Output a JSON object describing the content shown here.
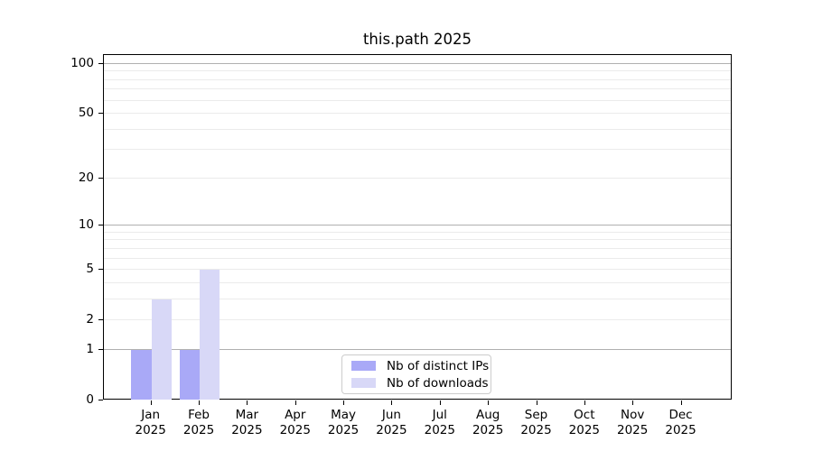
{
  "chart_data": {
    "type": "bar",
    "title": "this.path 2025",
    "categories": [
      "Jan",
      "Feb",
      "Mar",
      "Apr",
      "May",
      "Jun",
      "Jul",
      "Aug",
      "Sep",
      "Oct",
      "Nov",
      "Dec"
    ],
    "category_year": "2025",
    "series": [
      {
        "name": "Nb of distinct IPs",
        "color": "#a9a9f7",
        "values": [
          1,
          1,
          0,
          0,
          0,
          0,
          0,
          0,
          0,
          0,
          0,
          0
        ]
      },
      {
        "name": "Nb of downloads",
        "color": "#d8d8f7",
        "values": [
          3,
          5,
          0,
          0,
          0,
          0,
          0,
          0,
          0,
          0,
          0,
          0
        ]
      }
    ],
    "y_axis": {
      "scale": "log1p",
      "tick_values": [
        0,
        1,
        2,
        5,
        10,
        20,
        50,
        100
      ],
      "tick_labels": [
        "0",
        "1",
        "2",
        "5",
        "10",
        "20",
        "50",
        "100"
      ],
      "max": 100,
      "major_gridlines": [
        1,
        10,
        100
      ],
      "minor_gridlines": [
        2,
        3,
        4,
        5,
        6,
        7,
        8,
        9,
        20,
        30,
        40,
        50,
        60,
        70,
        80,
        90
      ]
    },
    "x_axis": {
      "label_line2": "2025"
    },
    "legend": {
      "position": "lower center",
      "entries": [
        "Nb of distinct IPs",
        "Nb of downloads"
      ]
    },
    "grid": true,
    "colors": {
      "major_grid": "#b0b0b0",
      "minor_grid": "#ebebeb",
      "spine": "#000000",
      "text": "#000000",
      "legend_border": "#cccccc"
    }
  }
}
